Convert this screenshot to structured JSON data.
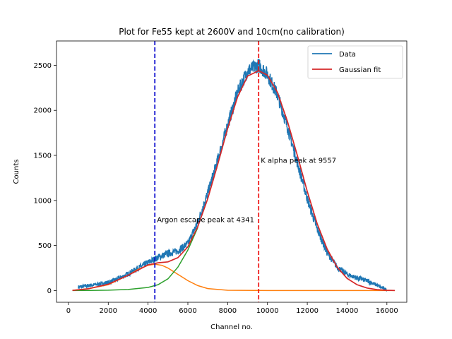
{
  "chart_data": {
    "type": "line",
    "title": "Plot for Fe55 kept at 2600V and 10cm(no calibration)",
    "xlabel": "Channel no.",
    "ylabel": "Counts",
    "xlim": [
      -600,
      17000
    ],
    "ylim": [
      -130,
      2770
    ],
    "xticks": [
      0,
      2000,
      4000,
      6000,
      8000,
      10000,
      12000,
      14000,
      16000
    ],
    "yticks": [
      0,
      500,
      1000,
      1500,
      2000,
      2500
    ],
    "legend": {
      "placement": "top-right",
      "entries": [
        "Data",
        "Gaussian fit"
      ]
    },
    "colors": {
      "data": "#1f77b4",
      "fit": "#d62728",
      "argon_gaussian": "#ff7f0e",
      "kalpha_gaussian": "#2ca02c",
      "argon_line": "#0000cc",
      "kalpha_line": "#ee1111"
    },
    "series": [
      {
        "name": "Data",
        "x": [
          500,
          1000,
          1500,
          2000,
          2500,
          3000,
          3500,
          4000,
          4341,
          4500,
          5000,
          5500,
          6000,
          6500,
          7000,
          7500,
          8000,
          8500,
          9000,
          9557,
          10000,
          10500,
          11000,
          11500,
          12000,
          12500,
          13000,
          13500,
          14000,
          14500,
          15000,
          15500,
          15700,
          16000
        ],
        "y": [
          40,
          55,
          70,
          90,
          130,
          185,
          250,
          310,
          350,
          370,
          410,
          440,
          520,
          760,
          1080,
          1450,
          1840,
          2200,
          2440,
          2500,
          2400,
          2170,
          1820,
          1420,
          1020,
          680,
          420,
          260,
          180,
          140,
          110,
          60,
          35,
          10
        ]
      },
      {
        "name": "Gaussian fit",
        "x": [
          200,
          1000,
          2000,
          3000,
          4000,
          4500,
          5000,
          5500,
          6000,
          6500,
          7000,
          7500,
          8000,
          8500,
          9000,
          9557,
          10000,
          10500,
          11000,
          11500,
          12000,
          12500,
          13000,
          13500,
          14000,
          14500,
          15000,
          15500,
          16000,
          16400
        ],
        "y": [
          2,
          20,
          70,
          170,
          285,
          308,
          318,
          365,
          485,
          710,
          1020,
          1400,
          1800,
          2150,
          2380,
          2440,
          2390,
          2200,
          1880,
          1500,
          1100,
          740,
          460,
          260,
          135,
          65,
          28,
          10,
          3,
          1
        ]
      },
      {
        "x": [
          200,
          1000,
          2000,
          3000,
          3500,
          4000,
          4341,
          4700,
          5000,
          5500,
          6000,
          6500,
          7000,
          8000,
          10000,
          12000,
          14000,
          16400
        ],
        "y": [
          3,
          20,
          65,
          170,
          235,
          280,
          292,
          280,
          250,
          180,
          110,
          55,
          22,
          3,
          0,
          0,
          0,
          0
        ]
      },
      {
        "x": [
          200,
          1000,
          2000,
          3000,
          4000,
          4500,
          5000,
          5500,
          6000,
          6500
        ],
        "y": [
          0,
          1,
          4,
          12,
          35,
          65,
          130,
          260,
          450,
          700
        ]
      }
    ],
    "vlines": [
      {
        "x": 4341,
        "label": "Argon escape peak at 4341",
        "label_y": 790
      },
      {
        "x": 9557,
        "label": "K alpha peak at 9557",
        "label_y": 1450
      }
    ]
  }
}
